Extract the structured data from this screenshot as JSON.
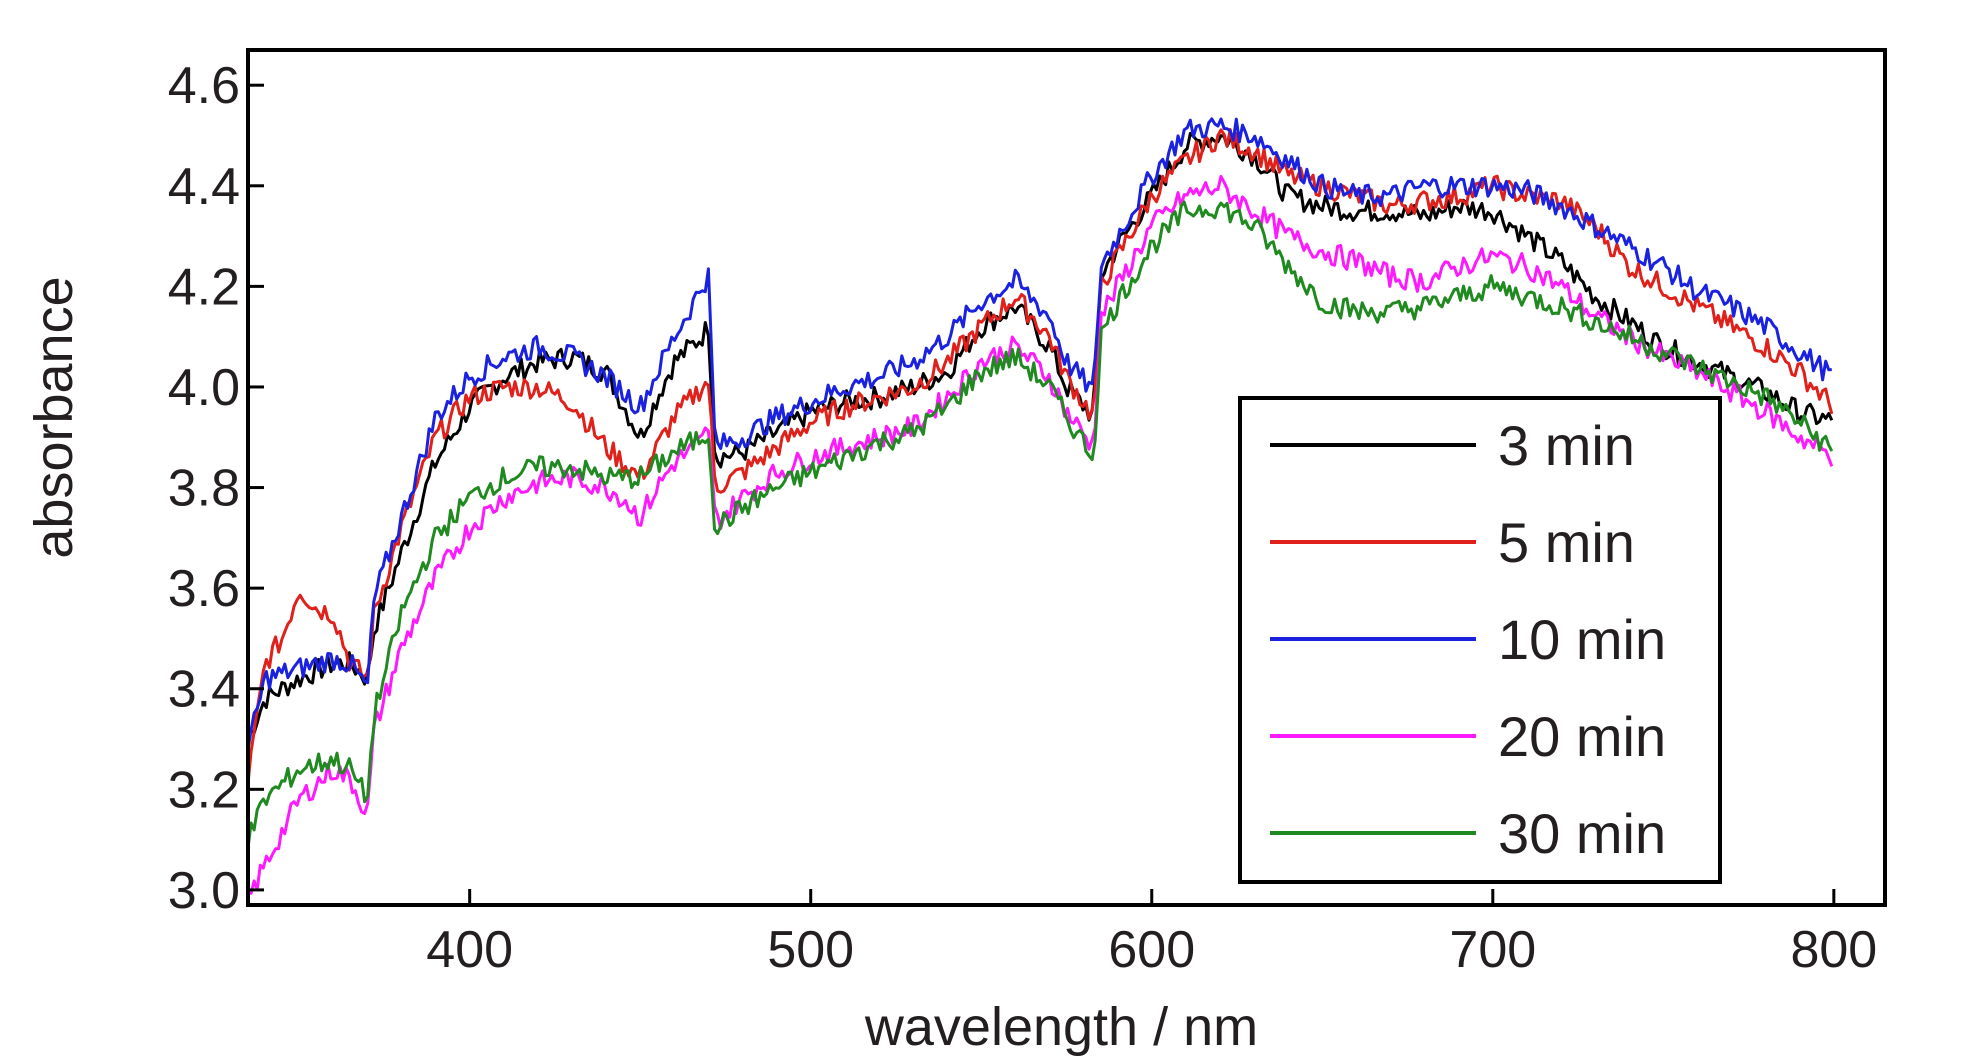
{
  "chart_data": {
    "type": "line",
    "xlabel": "wavelength / nm",
    "ylabel": "absorbance",
    "xlim": [
      335,
      815
    ],
    "ylim": [
      2.97,
      4.67
    ],
    "x_ticks": [
      {
        "value": 400,
        "label": "400"
      },
      {
        "value": 500,
        "label": "500"
      },
      {
        "value": 600,
        "label": "600"
      },
      {
        "value": 700,
        "label": "700"
      },
      {
        "value": 800,
        "label": "800"
      }
    ],
    "y_ticks": [
      {
        "value": 3.0,
        "label": "3.0"
      },
      {
        "value": 3.2,
        "label": "3.2"
      },
      {
        "value": 3.4,
        "label": "3.4"
      },
      {
        "value": 3.6,
        "label": "3.6"
      },
      {
        "value": 3.8,
        "label": "3.8"
      },
      {
        "value": 4.0,
        "label": "4.0"
      },
      {
        "value": 4.2,
        "label": "4.2"
      },
      {
        "value": 4.4,
        "label": "4.4"
      },
      {
        "value": 4.6,
        "label": "4.6"
      }
    ],
    "grid": false,
    "legend_position": "lower-right",
    "series": [
      {
        "name": "3 min",
        "color": "#000000",
        "x": [
          335,
          340,
          350,
          360,
          365,
          370,
          372,
          380,
          390,
          400,
          410,
          420,
          430,
          440,
          450,
          455,
          460,
          468,
          470,
          472,
          480,
          490,
          500,
          510,
          520,
          530,
          540,
          550,
          560,
          570,
          575,
          583,
          585,
          590,
          600,
          610,
          620,
          630,
          640,
          650,
          660,
          670,
          680,
          690,
          700,
          710,
          720,
          730,
          740,
          750,
          760,
          770,
          780,
          790,
          800
        ],
        "y": [
          3.3,
          3.38,
          3.42,
          3.45,
          3.45,
          3.42,
          3.52,
          3.67,
          3.85,
          3.96,
          4.02,
          4.05,
          4.06,
          4.03,
          3.9,
          3.98,
          4.05,
          4.1,
          4.12,
          3.86,
          3.87,
          3.91,
          3.95,
          3.97,
          3.98,
          4.0,
          4.03,
          4.12,
          4.16,
          4.08,
          4.0,
          3.94,
          4.22,
          4.28,
          4.38,
          4.48,
          4.5,
          4.46,
          4.38,
          4.36,
          4.35,
          4.35,
          4.34,
          4.36,
          4.35,
          4.3,
          4.25,
          4.18,
          4.13,
          4.08,
          4.05,
          4.02,
          3.99,
          3.95,
          3.93
        ]
      },
      {
        "name": "5 min",
        "color": "#e0201a",
        "x": [
          335,
          340,
          345,
          350,
          355,
          360,
          365,
          370,
          372,
          380,
          390,
          400,
          410,
          420,
          430,
          440,
          450,
          455,
          460,
          468,
          470,
          472,
          480,
          490,
          500,
          510,
          520,
          530,
          540,
          550,
          560,
          570,
          575,
          583,
          585,
          590,
          600,
          610,
          620,
          630,
          640,
          650,
          660,
          670,
          680,
          690,
          700,
          710,
          720,
          730,
          740,
          750,
          760,
          770,
          780,
          790,
          800
        ],
        "y": [
          3.22,
          3.45,
          3.5,
          3.6,
          3.56,
          3.55,
          3.45,
          3.42,
          3.55,
          3.72,
          3.9,
          3.98,
          4.0,
          4.0,
          3.97,
          3.88,
          3.82,
          3.88,
          3.94,
          4.0,
          4.01,
          3.8,
          3.83,
          3.88,
          3.93,
          3.96,
          3.98,
          4.0,
          4.05,
          4.12,
          4.18,
          4.1,
          4.02,
          3.94,
          4.2,
          4.26,
          4.38,
          4.45,
          4.5,
          4.47,
          4.42,
          4.4,
          4.38,
          4.36,
          4.37,
          4.38,
          4.4,
          4.38,
          4.37,
          4.32,
          4.24,
          4.2,
          4.16,
          4.12,
          4.08,
          4.03,
          3.96
        ]
      },
      {
        "name": "10 min",
        "color": "#1a22e0",
        "x": [
          335,
          340,
          350,
          360,
          365,
          370,
          372,
          380,
          390,
          400,
          410,
          420,
          430,
          440,
          450,
          460,
          465,
          468,
          470,
          472,
          480,
          490,
          500,
          510,
          520,
          530,
          540,
          550,
          560,
          570,
          575,
          583,
          585,
          590,
          600,
          610,
          620,
          630,
          640,
          650,
          660,
          670,
          680,
          690,
          700,
          710,
          720,
          730,
          740,
          750,
          760,
          770,
          780,
          790,
          800
        ],
        "y": [
          3.28,
          3.42,
          3.44,
          3.46,
          3.45,
          3.4,
          3.58,
          3.74,
          3.94,
          4.02,
          4.06,
          4.08,
          4.06,
          4.02,
          3.96,
          4.1,
          4.16,
          4.2,
          4.22,
          3.88,
          3.9,
          3.94,
          3.97,
          4.0,
          4.02,
          4.05,
          4.1,
          4.17,
          4.21,
          4.14,
          4.05,
          3.99,
          4.24,
          4.3,
          4.42,
          4.51,
          4.52,
          4.5,
          4.45,
          4.4,
          4.38,
          4.38,
          4.4,
          4.4,
          4.4,
          4.39,
          4.36,
          4.32,
          4.28,
          4.24,
          4.19,
          4.16,
          4.12,
          4.07,
          4.02
        ]
      },
      {
        "name": "20 min",
        "color": "#ff19ff",
        "x": [
          335,
          340,
          350,
          360,
          365,
          370,
          372,
          380,
          390,
          400,
          410,
          420,
          430,
          440,
          445,
          450,
          455,
          460,
          468,
          470,
          472,
          480,
          490,
          500,
          510,
          520,
          530,
          540,
          550,
          560,
          570,
          575,
          583,
          585,
          590,
          600,
          610,
          620,
          630,
          640,
          650,
          660,
          670,
          680,
          690,
          700,
          710,
          720,
          730,
          740,
          750,
          760,
          770,
          780,
          790,
          800
        ],
        "y": [
          2.98,
          3.05,
          3.18,
          3.24,
          3.22,
          3.15,
          3.32,
          3.48,
          3.62,
          3.72,
          3.78,
          3.81,
          3.82,
          3.8,
          3.78,
          3.74,
          3.8,
          3.85,
          3.89,
          3.92,
          3.73,
          3.78,
          3.83,
          3.86,
          3.88,
          3.9,
          3.92,
          3.98,
          4.05,
          4.08,
          4.02,
          3.95,
          3.88,
          4.14,
          4.2,
          4.32,
          4.38,
          4.4,
          4.35,
          4.3,
          4.27,
          4.25,
          4.22,
          4.21,
          4.24,
          4.26,
          4.24,
          4.2,
          4.14,
          4.1,
          4.06,
          4.03,
          3.99,
          3.95,
          3.9,
          3.86
        ]
      },
      {
        "name": "30 min",
        "color": "#208a20",
        "x": [
          335,
          340,
          350,
          360,
          365,
          370,
          372,
          380,
          390,
          400,
          410,
          420,
          430,
          440,
          450,
          460,
          468,
          470,
          472,
          480,
          490,
          500,
          510,
          520,
          530,
          540,
          550,
          560,
          570,
          575,
          583,
          585,
          590,
          600,
          610,
          620,
          630,
          640,
          650,
          660,
          670,
          680,
          690,
          700,
          710,
          720,
          730,
          740,
          750,
          760,
          770,
          780,
          790,
          800
        ],
        "y": [
          3.1,
          3.18,
          3.24,
          3.26,
          3.24,
          3.18,
          3.35,
          3.55,
          3.7,
          3.78,
          3.82,
          3.84,
          3.84,
          3.82,
          3.82,
          3.87,
          3.9,
          3.91,
          3.72,
          3.76,
          3.8,
          3.83,
          3.86,
          3.89,
          3.91,
          3.96,
          4.03,
          4.06,
          4.0,
          3.94,
          3.86,
          4.1,
          4.17,
          4.28,
          4.35,
          4.36,
          4.32,
          4.24,
          4.17,
          4.15,
          4.15,
          4.16,
          4.18,
          4.2,
          4.18,
          4.16,
          4.13,
          4.1,
          4.07,
          4.04,
          4.01,
          3.98,
          3.93,
          3.87
        ]
      }
    ]
  }
}
